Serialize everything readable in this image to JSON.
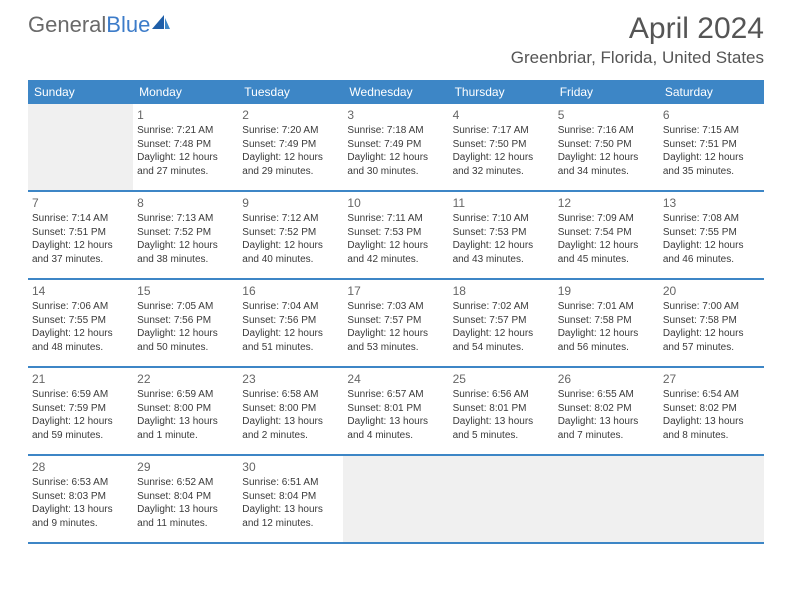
{
  "brand": {
    "general": "General",
    "blue": "Blue"
  },
  "title": "April 2024",
  "location": "Greenbriar, Florida, United States",
  "colors": {
    "header_bg": "#3d86c6",
    "border": "#3d86c6",
    "text": "#3a3a3a",
    "muted": "#666666"
  },
  "weekdays": [
    "Sunday",
    "Monday",
    "Tuesday",
    "Wednesday",
    "Thursday",
    "Friday",
    "Saturday"
  ],
  "weeks": [
    [
      null,
      {
        "n": "1",
        "sr": "Sunrise: 7:21 AM",
        "ss": "Sunset: 7:48 PM",
        "dl": "Daylight: 12 hours and 27 minutes."
      },
      {
        "n": "2",
        "sr": "Sunrise: 7:20 AM",
        "ss": "Sunset: 7:49 PM",
        "dl": "Daylight: 12 hours and 29 minutes."
      },
      {
        "n": "3",
        "sr": "Sunrise: 7:18 AM",
        "ss": "Sunset: 7:49 PM",
        "dl": "Daylight: 12 hours and 30 minutes."
      },
      {
        "n": "4",
        "sr": "Sunrise: 7:17 AM",
        "ss": "Sunset: 7:50 PM",
        "dl": "Daylight: 12 hours and 32 minutes."
      },
      {
        "n": "5",
        "sr": "Sunrise: 7:16 AM",
        "ss": "Sunset: 7:50 PM",
        "dl": "Daylight: 12 hours and 34 minutes."
      },
      {
        "n": "6",
        "sr": "Sunrise: 7:15 AM",
        "ss": "Sunset: 7:51 PM",
        "dl": "Daylight: 12 hours and 35 minutes."
      }
    ],
    [
      {
        "n": "7",
        "sr": "Sunrise: 7:14 AM",
        "ss": "Sunset: 7:51 PM",
        "dl": "Daylight: 12 hours and 37 minutes."
      },
      {
        "n": "8",
        "sr": "Sunrise: 7:13 AM",
        "ss": "Sunset: 7:52 PM",
        "dl": "Daylight: 12 hours and 38 minutes."
      },
      {
        "n": "9",
        "sr": "Sunrise: 7:12 AM",
        "ss": "Sunset: 7:52 PM",
        "dl": "Daylight: 12 hours and 40 minutes."
      },
      {
        "n": "10",
        "sr": "Sunrise: 7:11 AM",
        "ss": "Sunset: 7:53 PM",
        "dl": "Daylight: 12 hours and 42 minutes."
      },
      {
        "n": "11",
        "sr": "Sunrise: 7:10 AM",
        "ss": "Sunset: 7:53 PM",
        "dl": "Daylight: 12 hours and 43 minutes."
      },
      {
        "n": "12",
        "sr": "Sunrise: 7:09 AM",
        "ss": "Sunset: 7:54 PM",
        "dl": "Daylight: 12 hours and 45 minutes."
      },
      {
        "n": "13",
        "sr": "Sunrise: 7:08 AM",
        "ss": "Sunset: 7:55 PM",
        "dl": "Daylight: 12 hours and 46 minutes."
      }
    ],
    [
      {
        "n": "14",
        "sr": "Sunrise: 7:06 AM",
        "ss": "Sunset: 7:55 PM",
        "dl": "Daylight: 12 hours and 48 minutes."
      },
      {
        "n": "15",
        "sr": "Sunrise: 7:05 AM",
        "ss": "Sunset: 7:56 PM",
        "dl": "Daylight: 12 hours and 50 minutes."
      },
      {
        "n": "16",
        "sr": "Sunrise: 7:04 AM",
        "ss": "Sunset: 7:56 PM",
        "dl": "Daylight: 12 hours and 51 minutes."
      },
      {
        "n": "17",
        "sr": "Sunrise: 7:03 AM",
        "ss": "Sunset: 7:57 PM",
        "dl": "Daylight: 12 hours and 53 minutes."
      },
      {
        "n": "18",
        "sr": "Sunrise: 7:02 AM",
        "ss": "Sunset: 7:57 PM",
        "dl": "Daylight: 12 hours and 54 minutes."
      },
      {
        "n": "19",
        "sr": "Sunrise: 7:01 AM",
        "ss": "Sunset: 7:58 PM",
        "dl": "Daylight: 12 hours and 56 minutes."
      },
      {
        "n": "20",
        "sr": "Sunrise: 7:00 AM",
        "ss": "Sunset: 7:58 PM",
        "dl": "Daylight: 12 hours and 57 minutes."
      }
    ],
    [
      {
        "n": "21",
        "sr": "Sunrise: 6:59 AM",
        "ss": "Sunset: 7:59 PM",
        "dl": "Daylight: 12 hours and 59 minutes."
      },
      {
        "n": "22",
        "sr": "Sunrise: 6:59 AM",
        "ss": "Sunset: 8:00 PM",
        "dl": "Daylight: 13 hours and 1 minute."
      },
      {
        "n": "23",
        "sr": "Sunrise: 6:58 AM",
        "ss": "Sunset: 8:00 PM",
        "dl": "Daylight: 13 hours and 2 minutes."
      },
      {
        "n": "24",
        "sr": "Sunrise: 6:57 AM",
        "ss": "Sunset: 8:01 PM",
        "dl": "Daylight: 13 hours and 4 minutes."
      },
      {
        "n": "25",
        "sr": "Sunrise: 6:56 AM",
        "ss": "Sunset: 8:01 PM",
        "dl": "Daylight: 13 hours and 5 minutes."
      },
      {
        "n": "26",
        "sr": "Sunrise: 6:55 AM",
        "ss": "Sunset: 8:02 PM",
        "dl": "Daylight: 13 hours and 7 minutes."
      },
      {
        "n": "27",
        "sr": "Sunrise: 6:54 AM",
        "ss": "Sunset: 8:02 PM",
        "dl": "Daylight: 13 hours and 8 minutes."
      }
    ],
    [
      {
        "n": "28",
        "sr": "Sunrise: 6:53 AM",
        "ss": "Sunset: 8:03 PM",
        "dl": "Daylight: 13 hours and 9 minutes."
      },
      {
        "n": "29",
        "sr": "Sunrise: 6:52 AM",
        "ss": "Sunset: 8:04 PM",
        "dl": "Daylight: 13 hours and 11 minutes."
      },
      {
        "n": "30",
        "sr": "Sunrise: 6:51 AM",
        "ss": "Sunset: 8:04 PM",
        "dl": "Daylight: 13 hours and 12 minutes."
      },
      null,
      null,
      null,
      null
    ]
  ]
}
